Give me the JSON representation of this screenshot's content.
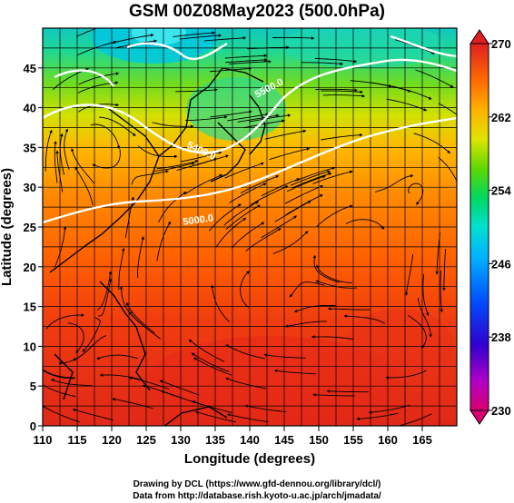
{
  "title": "GSM 00Z08May2023 (500.0hPa)",
  "x_axis": {
    "label": "Longitude (degrees)",
    "range": [
      110,
      170
    ],
    "ticks": [
      "110",
      "115",
      "120",
      "125",
      "130",
      "135",
      "140",
      "145",
      "150",
      "155",
      "160",
      "165"
    ]
  },
  "y_axis": {
    "label": "Latitude (degrees)",
    "range": [
      0,
      50
    ],
    "ticks": [
      "0",
      "5",
      "10",
      "15",
      "20",
      "25",
      "30",
      "35",
      "40",
      "45"
    ]
  },
  "colorbar": {
    "range": [
      230,
      270
    ],
    "labels": [
      "270",
      "262",
      "254",
      "246",
      "238",
      "230"
    ],
    "colors": [
      "#d9006f",
      "#c000c0",
      "#6a00d0",
      "#0020d0",
      "#0060ff",
      "#00b4ff",
      "#00e0e0",
      "#00e8a0",
      "#00d050",
      "#40d000",
      "#a0e000",
      "#e8e800",
      "#ffc000",
      "#ff8000",
      "#ff4000",
      "#e82000",
      "#d01010"
    ]
  },
  "contours": [
    {
      "label": "5500.0"
    },
    {
      "label": "5400.0"
    },
    {
      "label": "5000.0"
    }
  ],
  "credits": [
    "Drawing by DCL (https://www.gfd-dennou.org/library/dcl/)",
    "Data from http://database.rish.kyoto-u.ac.jp/arch/jmadata/"
  ]
}
